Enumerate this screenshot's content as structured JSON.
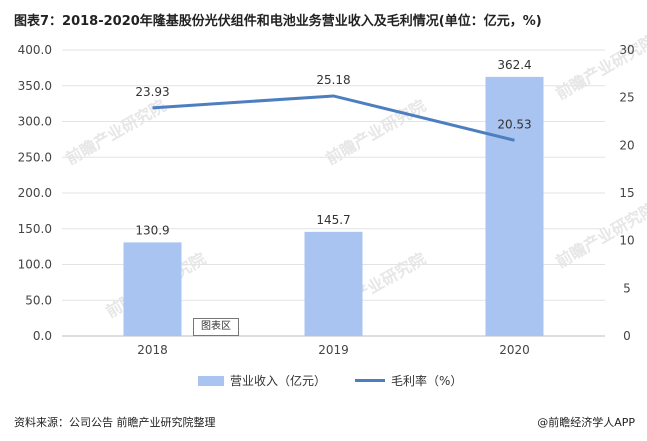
{
  "title": "图表7：2018-2020年隆基股份光伏组件和电池业务营业收入及毛利情况(单位：亿元，%)",
  "source": "资料来源：公司公告 前瞻产业研究院整理",
  "brand": "@前瞻经济学人APP",
  "chart_label": "图表区",
  "watermark": "前瞻产业研究院",
  "chart_data": {
    "type": "bar",
    "categories": [
      "2018",
      "2019",
      "2020"
    ],
    "series": [
      {
        "name": "营业收入（亿元）",
        "type": "bar",
        "axis": "left",
        "values": [
          130.9,
          145.7,
          362.4
        ],
        "labels": [
          "130.9",
          "145.7",
          "362.4"
        ],
        "color": "#a9c4f0"
      },
      {
        "name": "毛利率（%）",
        "type": "line",
        "axis": "right",
        "values": [
          23.93,
          25.18,
          20.53
        ],
        "labels": [
          "23.93",
          "25.18",
          "20.53"
        ],
        "color": "#4d7fc0"
      }
    ],
    "y_left": {
      "ticks": [
        "0.0",
        "50.0",
        "100.0",
        "150.0",
        "200.0",
        "250.0",
        "300.0",
        "350.0",
        "400.0"
      ],
      "min": 0,
      "max": 400
    },
    "y_right": {
      "ticks": [
        "0",
        "5",
        "10",
        "15",
        "20",
        "25",
        "30"
      ],
      "min": 0,
      "max": 30
    },
    "grid": true,
    "legend": "bottom"
  }
}
